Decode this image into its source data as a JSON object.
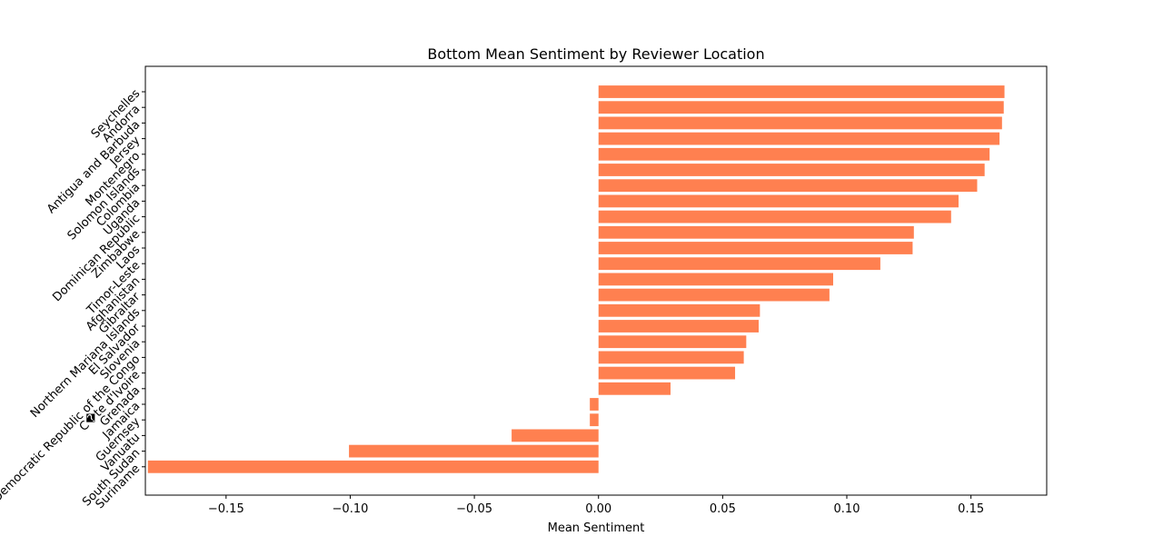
{
  "chart_data": {
    "type": "bar",
    "orientation": "horizontal",
    "title": "Bottom Mean Sentiment by Reviewer Location",
    "xlabel": "Mean Sentiment",
    "ylabel": "",
    "bar_color": "#ff8050",
    "xlim": [
      -0.1825,
      0.1805
    ],
    "x_ticks": [
      {
        "value": -0.15,
        "label": "−0.15"
      },
      {
        "value": -0.1,
        "label": "−0.10"
      },
      {
        "value": -0.05,
        "label": "−0.05"
      },
      {
        "value": 0.0,
        "label": "0.00"
      },
      {
        "value": 0.05,
        "label": "0.05"
      },
      {
        "value": 0.1,
        "label": "0.10"
      },
      {
        "value": 0.15,
        "label": "0.15"
      }
    ],
    "grid": false,
    "categories": [
      "Seychelles",
      "Andorra",
      "Antigua and Barbuda",
      "Jersey",
      "Montenegro",
      "Solomon Islands",
      "Colombia",
      "Uganda",
      "Dominican Republic",
      "Zimbabwe",
      "Laos",
      "Timor-Leste",
      "Afghanistan",
      "Gibraltar",
      "Northern Mariana Islands",
      "El Salvador",
      "Slovenia",
      "Democratic Republic of the Congo",
      "C�te d'Ivoire",
      "Grenada",
      "Jamaica",
      "Guernsey",
      "Vanuatu",
      "South Sudan",
      "Suriname"
    ],
    "values": [
      0.1635,
      0.1632,
      0.1625,
      0.1615,
      0.1575,
      0.1555,
      0.1525,
      0.145,
      0.142,
      0.127,
      0.1265,
      0.1135,
      0.0945,
      0.093,
      0.065,
      0.0645,
      0.0595,
      0.0585,
      0.055,
      0.029,
      -0.0035,
      -0.0035,
      -0.035,
      -0.1005,
      -0.1815
    ]
  }
}
